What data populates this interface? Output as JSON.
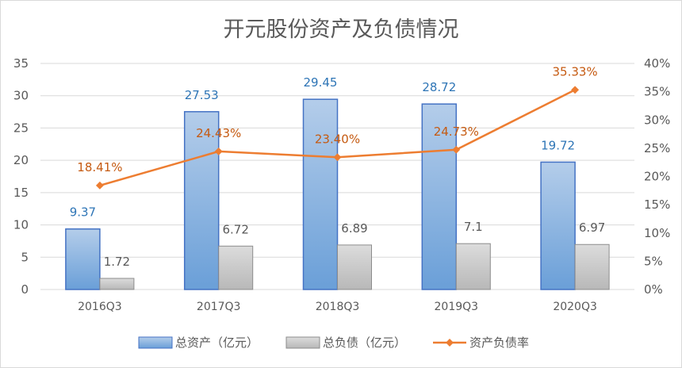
{
  "chart_data": {
    "type": "bar+line",
    "title": "开元股份资产及负债情况",
    "categories": [
      "2016Q3",
      "2017Q3",
      "2018Q3",
      "2019Q3",
      "2020Q3"
    ],
    "series": [
      {
        "name": "总资产（亿元）",
        "type": "bar",
        "axis": "left",
        "values": [
          9.37,
          27.53,
          29.45,
          28.72,
          19.72
        ],
        "labels": [
          "9.37",
          "27.53",
          "29.45",
          "28.72",
          "19.72"
        ],
        "color": "#5b9bd5"
      },
      {
        "name": "总负债（亿元）",
        "type": "bar",
        "axis": "left",
        "values": [
          1.72,
          6.72,
          6.89,
          7.1,
          6.97
        ],
        "labels": [
          "1.72",
          "6.72",
          "6.89",
          "7.1",
          "6.97"
        ],
        "color": "#a5a5a5"
      },
      {
        "name": "资产负债率",
        "type": "line",
        "axis": "right",
        "values": [
          18.41,
          24.43,
          23.4,
          24.73,
          35.33
        ],
        "labels": [
          "18.41%",
          "24.43%",
          "23.40%",
          "24.73%",
          "35.33%"
        ],
        "color": "#ed7d31"
      }
    ],
    "y_left": {
      "min": 0,
      "max": 35,
      "ticks": [
        "0",
        "5",
        "10",
        "15",
        "20",
        "25",
        "30",
        "35"
      ]
    },
    "y_right": {
      "min": 0,
      "max": 40,
      "ticks": [
        "0%",
        "5%",
        "10%",
        "15%",
        "20%",
        "25%",
        "30%",
        "35%",
        "40%"
      ]
    },
    "grid": true,
    "legend_position": "bottom"
  }
}
